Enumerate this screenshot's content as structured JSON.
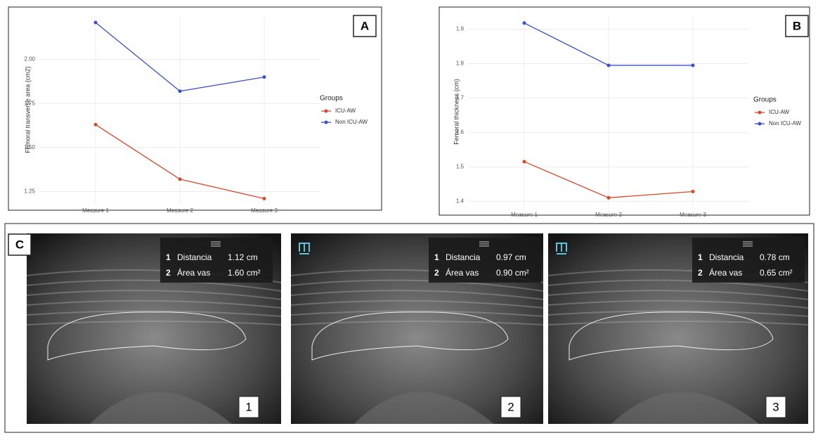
{
  "chart_data": [
    {
      "type": "line",
      "panel": "A",
      "y_label": "Femoral transverse area (cm2)",
      "legend_title": "Groups",
      "categories": [
        "Measure 1",
        "Measure 2",
        "Measure 3"
      ],
      "series": [
        {
          "name": "ICU-AW",
          "color": "#d9472b",
          "values": [
            1.63,
            1.32,
            1.21
          ]
        },
        {
          "name": "Non ICU-AW",
          "color": "#3a4fd0",
          "values": [
            2.21,
            1.82,
            1.9
          ]
        }
      ],
      "ylim": [
        1.18,
        2.25
      ],
      "yticks": [
        1.25,
        {
          "value": 1.5,
          "label": "1.50"
        },
        1.75,
        {
          "value": 2,
          "label": "2.00"
        }
      ],
      "grid": true
    },
    {
      "type": "line",
      "panel": "B",
      "y_label": "Femoral thickness (cm)",
      "legend_title": "Groups",
      "categories": [
        "Measure 1",
        "Measure 2",
        "Measure 3"
      ],
      "series": [
        {
          "name": "ICU-AW",
          "color": "#d9472b",
          "values": [
            1.515,
            1.41,
            1.428
          ]
        },
        {
          "name": "Non ICU-AW",
          "color": "#3a4fd0",
          "values": [
            1.918,
            1.795,
            1.795
          ]
        }
      ],
      "ylim": [
        1.38,
        1.94
      ],
      "yticks": [
        1.4,
        1.5,
        1.6,
        1.7,
        1.8,
        1.9
      ],
      "grid": true
    }
  ],
  "ultrasound": {
    "panel": "C",
    "images": [
      {
        "number": "1",
        "measurements": [
          {
            "index": "1",
            "label": "Distancia",
            "value": "1.12 cm"
          },
          {
            "index": "2",
            "label": "Área vas",
            "value": "1.60 cm²"
          }
        ]
      },
      {
        "number": "2",
        "measurements": [
          {
            "index": "1",
            "label": "Distancia",
            "value": "0.97 cm"
          },
          {
            "index": "2",
            "label": "Área vas",
            "value": "0.90 cm²"
          }
        ]
      },
      {
        "number": "3",
        "measurements": [
          {
            "index": "1",
            "label": "Distancia",
            "value": "0.78 cm"
          },
          {
            "index": "2",
            "label": "Área vas",
            "value": "0.65 cm²"
          }
        ]
      }
    ]
  }
}
